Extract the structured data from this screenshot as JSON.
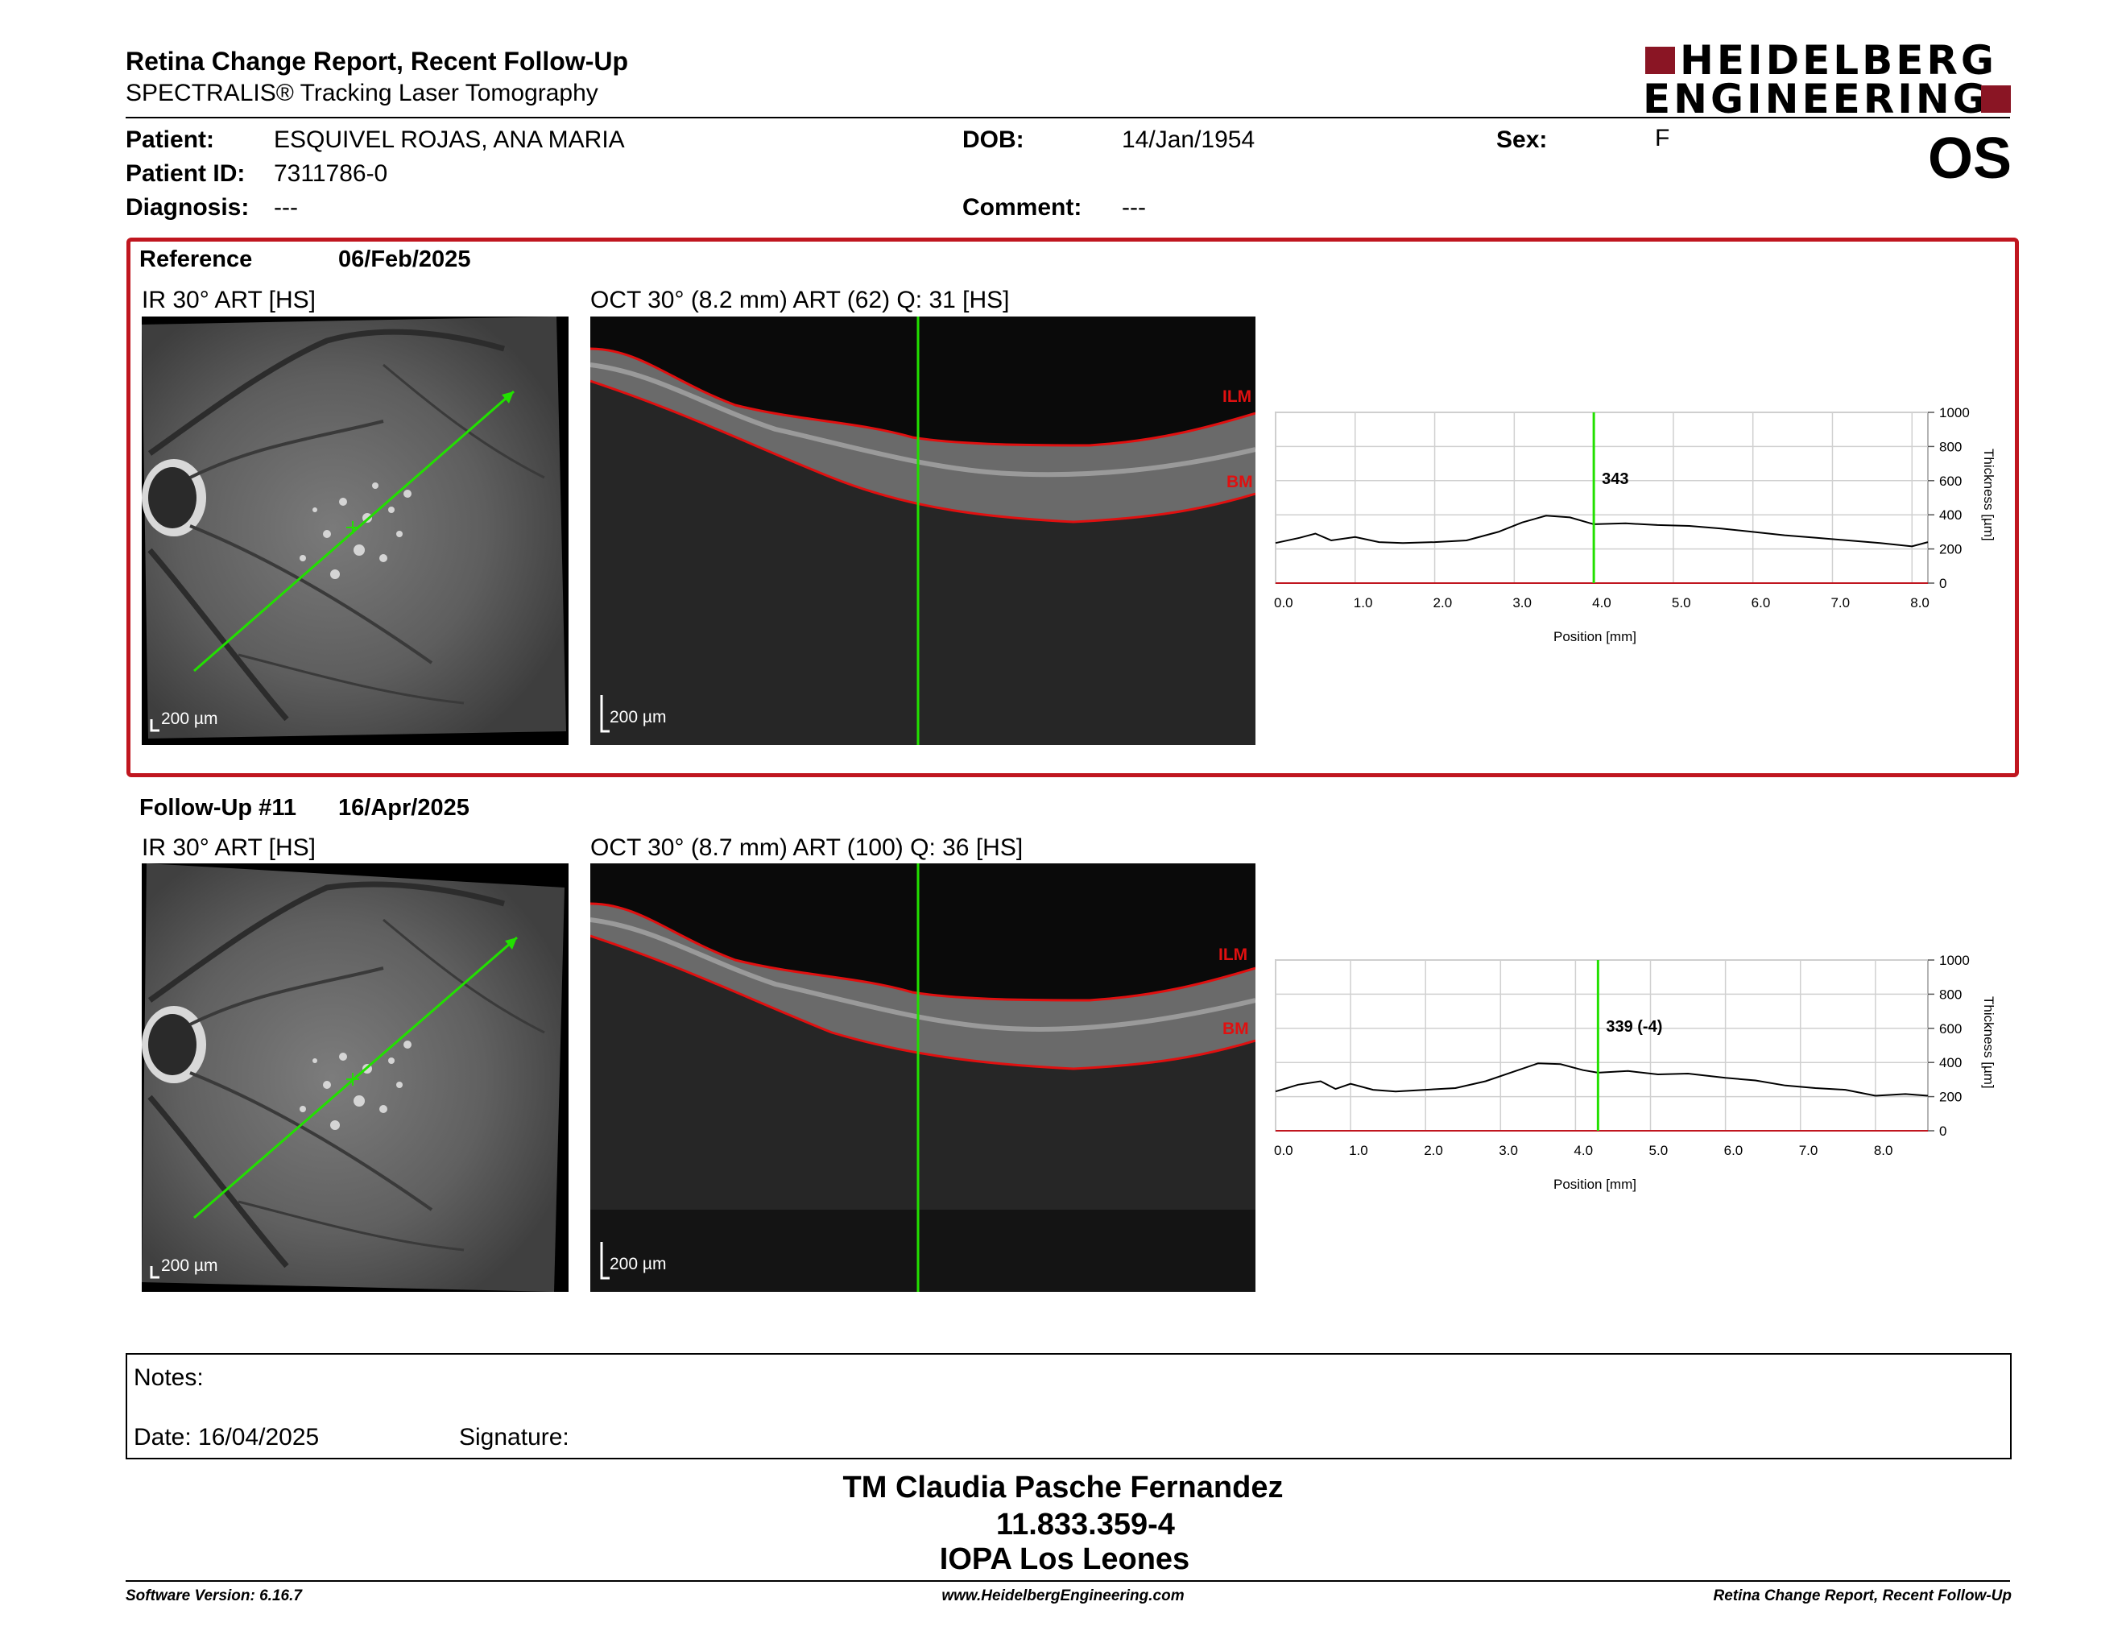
{
  "header": {
    "title": "Retina Change Report, Recent Follow-Up",
    "subtitle": "SPECTRALIS® Tracking Laser Tomography",
    "logo_line1": "HEIDELBERG",
    "logo_line2": "ENGINEERING",
    "eye": "OS"
  },
  "patient": {
    "patient_label": "Patient:",
    "patient_value": "ESQUIVEL ROJAS, ANA MARIA",
    "id_label": "Patient ID:",
    "id_value": "7311786-0",
    "diagnosis_label": "Diagnosis:",
    "diagnosis_value": "---",
    "dob_label": "DOB:",
    "dob_value": "14/Jan/1954",
    "comment_label": "Comment:",
    "comment_value": "---",
    "sex_label": "Sex:",
    "sex_value": "F"
  },
  "reference": {
    "label": "Reference",
    "date": "06/Feb/2025",
    "ir_title": "IR 30° ART [HS]",
    "oct_title": "OCT 30° (8.2 mm) ART (62) Q: 31 [HS]",
    "ir_scale": "200 µm",
    "oct_scale": "200 µm",
    "ilm": "ILM",
    "bm": "BM",
    "marker_label": "343"
  },
  "followup": {
    "label": "Follow-Up #11",
    "date": "16/Apr/2025",
    "ir_title": "IR 30° ART [HS]",
    "oct_title": "OCT 30° (8.7 mm) ART (100) Q: 36 [HS]",
    "ir_scale": "200 µm",
    "oct_scale": "200 µm",
    "ilm": "ILM",
    "bm": "BM",
    "marker_label": "339 (-4)"
  },
  "chart_data": [
    {
      "type": "line",
      "xlabel": "Position [mm]",
      "ylabel": "Thickness [µm]",
      "xlim": [
        0,
        8.2
      ],
      "ylim": [
        0,
        1000
      ],
      "xticks": [
        "0.0",
        "1.0",
        "2.0",
        "3.0",
        "4.0",
        "5.0",
        "6.0",
        "7.0",
        "8.0"
      ],
      "yticks": [
        "0",
        "200",
        "400",
        "600",
        "800",
        "1000"
      ],
      "grid": true,
      "marker_x": 4.0,
      "marker_value": 343,
      "series": [
        {
          "x": [
            0,
            0.3,
            0.5,
            0.7,
            1.0,
            1.3,
            1.6,
            2.0,
            2.4,
            2.8,
            3.1,
            3.4,
            3.7,
            4.0,
            4.4,
            4.8,
            5.2,
            5.6,
            6.0,
            6.4,
            6.8,
            7.2,
            7.6,
            8.0,
            8.2
          ],
          "y": [
            235,
            265,
            290,
            250,
            270,
            240,
            235,
            240,
            250,
            300,
            355,
            395,
            385,
            345,
            350,
            340,
            335,
            320,
            300,
            280,
            265,
            250,
            235,
            215,
            240
          ]
        }
      ]
    },
    {
      "type": "line",
      "xlabel": "Position [mm]",
      "ylabel": "Thickness [µm]",
      "xlim": [
        0,
        8.7
      ],
      "ylim": [
        0,
        1000
      ],
      "xticks": [
        "0.0",
        "1.0",
        "2.0",
        "3.0",
        "4.0",
        "5.0",
        "6.0",
        "7.0",
        "8.0"
      ],
      "yticks": [
        "0",
        "200",
        "400",
        "600",
        "800",
        "1000"
      ],
      "grid": true,
      "marker_x": 4.3,
      "marker_value": 339,
      "marker_change": -4,
      "series": [
        {
          "x": [
            0,
            0.3,
            0.6,
            0.8,
            1.0,
            1.3,
            1.6,
            2.0,
            2.4,
            2.8,
            3.2,
            3.5,
            3.8,
            4.1,
            4.3,
            4.7,
            5.1,
            5.5,
            6.0,
            6.4,
            6.8,
            7.2,
            7.6,
            8.0,
            8.4,
            8.7
          ],
          "y": [
            230,
            270,
            290,
            245,
            275,
            240,
            230,
            240,
            250,
            290,
            350,
            395,
            390,
            355,
            340,
            350,
            330,
            335,
            310,
            295,
            265,
            250,
            240,
            205,
            215,
            205
          ]
        }
      ]
    }
  ],
  "notes": {
    "notes_label": "Notes:",
    "date_label": "Date: 16/04/2025",
    "signature_label": "Signature:"
  },
  "signature_block": {
    "name": "TM Claudia Pasche Fernandez",
    "id": "11.833.359-4",
    "institution": "IOPA Los Leones"
  },
  "footer": {
    "software": "Software Version: 6.16.7",
    "website": "www.HeidelbergEngineering.com",
    "report": "Retina Change Report, Recent Follow-Up"
  },
  "colors": {
    "accent_red": "#c0161f",
    "logo_red": "#8a1524",
    "scan_green": "#22e000"
  }
}
